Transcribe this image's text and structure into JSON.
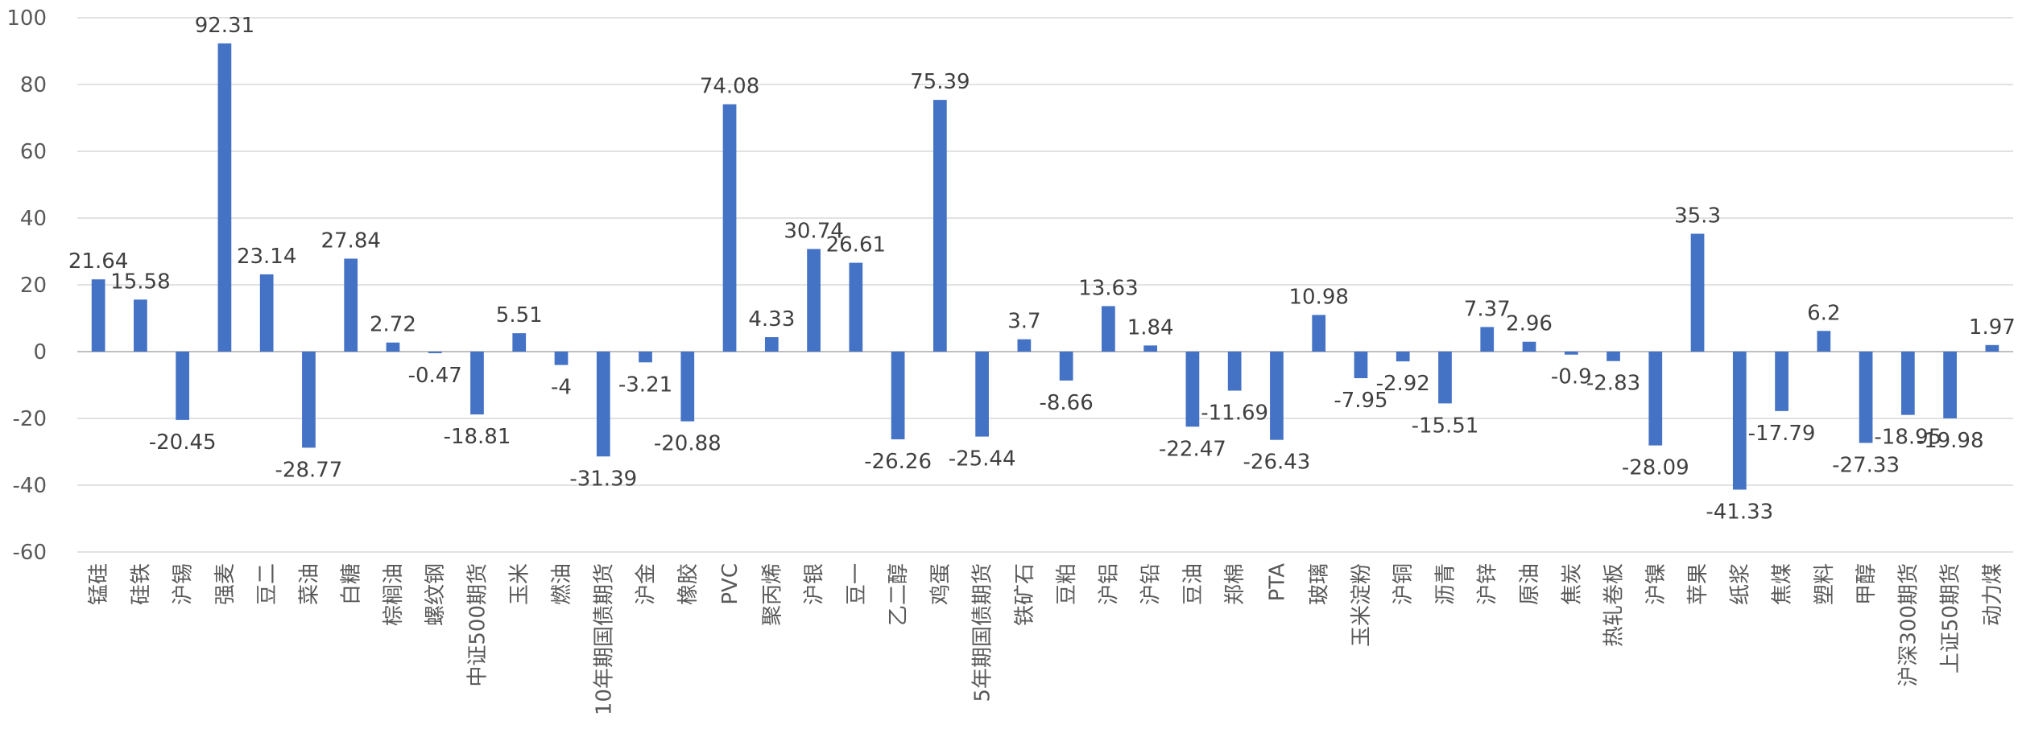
{
  "chart_data": {
    "type": "bar",
    "title": "",
    "xlabel": "",
    "ylabel": "",
    "ylim": [
      -60,
      100
    ],
    "yticks": [
      100,
      80,
      60,
      40,
      20,
      0,
      -20,
      -40,
      -60
    ],
    "grid": true,
    "legend": "none",
    "bar_color": "#4472C4",
    "categories": [
      "锰硅",
      "硅铁",
      "沪锡",
      "强麦",
      "豆二",
      "菜油",
      "白糖",
      "棕榈油",
      "螺纹钢",
      "中证500期货",
      "玉米",
      "燃油",
      "10年期国债期货",
      "沪金",
      "橡胶",
      "PVC",
      "聚丙烯",
      "沪银",
      "豆一",
      "乙二醇",
      "鸡蛋",
      "5年期国债期货",
      "铁矿石",
      "豆粕",
      "沪铝",
      "沪铅",
      "豆油",
      "郑棉",
      "PTA",
      "玻璃",
      "玉米淀粉",
      "沪铜",
      "沥青",
      "沪锌",
      "原油",
      "焦炭",
      "热轧卷板",
      "沪镍",
      "苹果",
      "纸浆",
      "焦煤",
      "塑料",
      "甲醇",
      "沪深300期货",
      "上证50期货",
      "动力煤"
    ],
    "values": [
      21.64,
      15.58,
      -20.45,
      92.31,
      23.14,
      -28.77,
      27.84,
      2.72,
      -0.47,
      -18.81,
      5.51,
      -4,
      -31.39,
      -3.21,
      -20.88,
      74.08,
      4.33,
      30.74,
      26.61,
      -26.26,
      75.39,
      -25.44,
      3.7,
      -8.66,
      13.63,
      1.84,
      -22.47,
      -11.69,
      -26.43,
      10.98,
      -7.95,
      -2.92,
      -15.51,
      7.37,
      2.96,
      -0.9,
      -2.83,
      -28.09,
      35.3,
      -41.33,
      -17.79,
      6.2,
      -27.33,
      -18.95,
      -19.98,
      1.97
    ]
  }
}
